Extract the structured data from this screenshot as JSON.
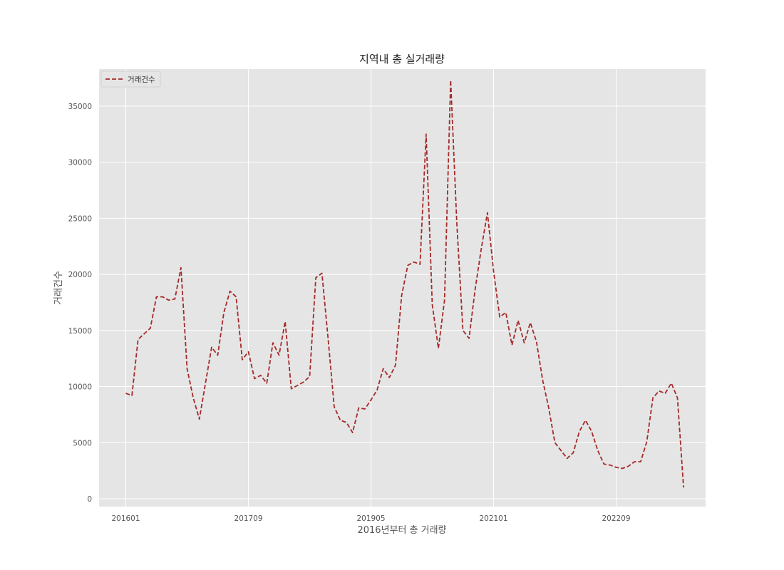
{
  "chart_data": {
    "type": "line",
    "title": "지역내 총 실거래량",
    "xlabel": "2016년부터 총 거래량",
    "ylabel": "거래건수",
    "x_tick_labels": [
      "201601",
      "201709",
      "201905",
      "202101",
      "202209"
    ],
    "y_tick_labels": [
      "0",
      "5000",
      "10000",
      "15000",
      "20000",
      "25000",
      "30000",
      "35000"
    ],
    "ylim": [
      -700,
      38300
    ],
    "grid": true,
    "legend_position": "top-left",
    "series": [
      {
        "name": "거래건수",
        "color": "#a52a2a",
        "line_style": "dashed",
        "values": [
          9400,
          9200,
          14200,
          14700,
          15200,
          18000,
          18000,
          17700,
          17800,
          20600,
          11600,
          9000,
          7100,
          10300,
          13500,
          12800,
          16600,
          18500,
          18000,
          12400,
          13100,
          10700,
          11000,
          10300,
          13900,
          12800,
          15800,
          9800,
          10100,
          10400,
          10900,
          19700,
          20100,
          14300,
          8200,
          7000,
          6800,
          5900,
          8100,
          8000,
          8800,
          9700,
          11600,
          10800,
          11900,
          18100,
          20800,
          21100,
          20900,
          32500,
          17300,
          13400,
          17700,
          37300,
          24600,
          15000,
          14300,
          18700,
          22300,
          25500,
          20300,
          16200,
          16600,
          13700,
          15900,
          13900,
          15700,
          14000,
          10600,
          8100,
          5000,
          4300,
          3600,
          4100,
          6000,
          7000,
          6000,
          4300,
          3100,
          3000,
          2800,
          2700,
          2900,
          3300,
          3300,
          5100,
          9000,
          9600,
          9400,
          10300,
          9000,
          1000
        ]
      }
    ]
  }
}
